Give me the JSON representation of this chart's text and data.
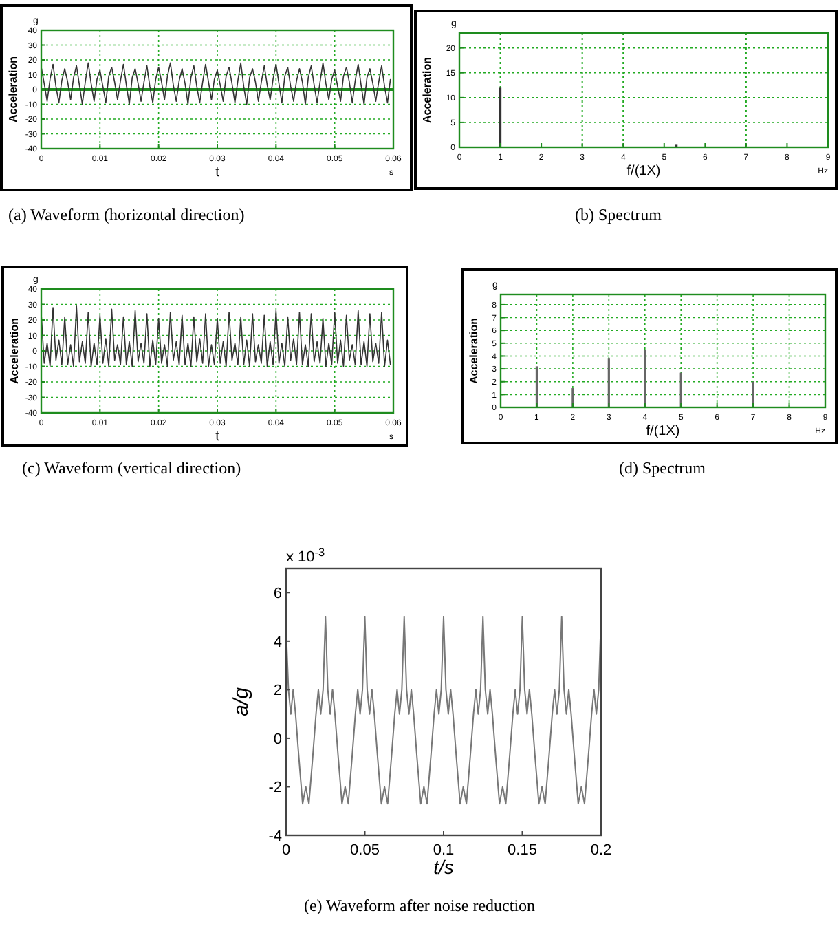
{
  "chart_data": [
    {
      "type": "line",
      "title": "(a) Waveform (horizontal direction)",
      "xlabel": "t",
      "ylabel": "Acceleration",
      "annotations": [
        "g",
        "s"
      ],
      "xlim": [
        0,
        0.06
      ],
      "xticks": [
        0,
        0.01,
        0.02,
        0.03,
        0.04,
        0.05,
        0.06
      ],
      "ylim": [
        -40,
        40
      ],
      "yticks": [
        -40,
        -30,
        -20,
        -10,
        0,
        10,
        20,
        30,
        40
      ],
      "grid": true,
      "ref_lines": [
        {
          "axis": "y",
          "value": 0,
          "color": "#1e8c1e"
        }
      ],
      "x": [
        0,
        0.0005,
        0.001,
        0.0015,
        0.002,
        0.0025,
        0.003,
        0.0035,
        0.004,
        0.0045,
        0.005,
        0.0055,
        0.006,
        0.0065,
        0.007,
        0.0075,
        0.008,
        0.0085,
        0.009,
        0.0095,
        0.01,
        0.0105,
        0.011,
        0.0115,
        0.012,
        0.0125,
        0.013,
        0.0135,
        0.014,
        0.0145,
        0.015,
        0.0155,
        0.016,
        0.0165,
        0.017,
        0.0175,
        0.018,
        0.0185,
        0.019,
        0.0195,
        0.02,
        0.0205,
        0.021,
        0.0215,
        0.022,
        0.0225,
        0.023,
        0.0235,
        0.024,
        0.0245,
        0.025,
        0.0255,
        0.026,
        0.0265,
        0.027,
        0.0275,
        0.028,
        0.0285,
        0.029,
        0.0295,
        0.03,
        0.0305,
        0.031,
        0.0315,
        0.032,
        0.0325,
        0.033,
        0.0335,
        0.034,
        0.0345,
        0.035,
        0.0355,
        0.036,
        0.0365,
        0.037,
        0.0375,
        0.038,
        0.0385,
        0.039,
        0.0395,
        0.04,
        0.0405,
        0.041,
        0.0415,
        0.042,
        0.0425,
        0.043,
        0.0435,
        0.044,
        0.0445,
        0.045,
        0.0455,
        0.046,
        0.0465,
        0.047,
        0.0475,
        0.048,
        0.0485,
        0.049,
        0.0495,
        0.05,
        0.0505,
        0.051,
        0.0515,
        0.052,
        0.0525,
        0.053,
        0.0535,
        0.054,
        0.0545,
        0.055,
        0.0555,
        0.056,
        0.0565,
        0.057,
        0.0575,
        0.058,
        0.0585,
        0.059,
        0.0595
      ],
      "series": [
        {
          "color": "#333333",
          "values": [
            15,
            4,
            -8,
            7,
            17,
            2,
            -9,
            6,
            14,
            5,
            -7,
            8,
            16,
            3,
            -10,
            5,
            18,
            4,
            -8,
            7,
            13,
            2,
            -9,
            9,
            15,
            5,
            -7,
            6,
            17,
            3,
            -10,
            8,
            14,
            4,
            -8,
            5,
            16,
            2,
            -9,
            7,
            15,
            5,
            -7,
            9,
            18,
            3,
            -8,
            6,
            14,
            4,
            -10,
            8,
            16,
            2,
            -9,
            5,
            17,
            5,
            -7,
            7,
            13,
            3,
            -8,
            9,
            15,
            4,
            -9,
            6,
            18,
            2,
            -10,
            8,
            14,
            5,
            -8,
            5,
            16,
            3,
            -7,
            7,
            17,
            4,
            -9,
            9,
            15,
            2,
            -8,
            6,
            14,
            5,
            -10,
            8,
            16,
            3,
            -9,
            5,
            18,
            4,
            -7,
            7,
            13,
            2,
            -8,
            9,
            15,
            5,
            -9,
            6,
            17,
            3,
            -10,
            8,
            14,
            4,
            -8,
            5,
            16,
            2,
            -9,
            7
          ]
        }
      ]
    },
    {
      "type": "bar",
      "title": "(b) Spectrum",
      "xlabel": "f/(1X)",
      "ylabel": "Acceleration",
      "annotations": [
        "g",
        "Hz"
      ],
      "xlim": [
        0,
        9
      ],
      "xticks": [
        0,
        1,
        2,
        3,
        4,
        5,
        6,
        7,
        8,
        9
      ],
      "ylim": [
        0,
        23
      ],
      "yticks": [
        0,
        5,
        10,
        15,
        20
      ],
      "grid": "y",
      "ref_lines": [
        {
          "axis": "x",
          "value": 1,
          "color": "#22aa22",
          "line_style": "dotted"
        },
        {
          "axis": "x",
          "value": 3,
          "color": "#22aa22",
          "line_style": "dotted"
        },
        {
          "axis": "x",
          "value": 4,
          "color": "#22aa22",
          "line_style": "dotted"
        },
        {
          "axis": "x",
          "value": 7,
          "color": "#22aa22",
          "line_style": "dotted"
        }
      ],
      "x": [
        1,
        5.3
      ],
      "series": [
        {
          "color": "#333333",
          "values": [
            12,
            0.5
          ]
        }
      ]
    },
    {
      "type": "line",
      "title": "(c) Waveform (vertical direction)",
      "xlabel": "t",
      "ylabel": "Acceleration",
      "annotations": [
        "g",
        "s"
      ],
      "xlim": [
        0,
        0.06
      ],
      "xticks": [
        0,
        0.01,
        0.02,
        0.03,
        0.04,
        0.05,
        0.06
      ],
      "ylim": [
        -40,
        40
      ],
      "yticks": [
        -40,
        -30,
        -20,
        -10,
        0,
        10,
        20,
        30,
        40
      ],
      "grid": true,
      "x": [
        0,
        0.0005,
        0.001,
        0.0015,
        0.002,
        0.0025,
        0.003,
        0.0035,
        0.004,
        0.0045,
        0.005,
        0.0055,
        0.006,
        0.0065,
        0.007,
        0.0075,
        0.008,
        0.0085,
        0.009,
        0.0095,
        0.01,
        0.0105,
        0.011,
        0.0115,
        0.012,
        0.0125,
        0.013,
        0.0135,
        0.014,
        0.0145,
        0.015,
        0.0155,
        0.016,
        0.0165,
        0.017,
        0.0175,
        0.018,
        0.0185,
        0.019,
        0.0195,
        0.02,
        0.0205,
        0.021,
        0.0215,
        0.022,
        0.0225,
        0.023,
        0.0235,
        0.024,
        0.0245,
        0.025,
        0.0255,
        0.026,
        0.0265,
        0.027,
        0.0275,
        0.028,
        0.0285,
        0.029,
        0.0295,
        0.03,
        0.0305,
        0.031,
        0.0315,
        0.032,
        0.0325,
        0.033,
        0.0335,
        0.034,
        0.0345,
        0.035,
        0.0355,
        0.036,
        0.0365,
        0.037,
        0.0375,
        0.038,
        0.0385,
        0.039,
        0.0395,
        0.04,
        0.0405,
        0.041,
        0.0415,
        0.042,
        0.0425,
        0.043,
        0.0435,
        0.044,
        0.0445,
        0.045,
        0.0455,
        0.046,
        0.0465,
        0.047,
        0.0475,
        0.048,
        0.0485,
        0.049,
        0.0495,
        0.05,
        0.0505,
        0.051,
        0.0515,
        0.052,
        0.0525,
        0.053,
        0.0535,
        0.054,
        0.0545,
        0.055,
        0.0555,
        0.056,
        0.0565,
        0.057,
        0.0575,
        0.058,
        0.0585,
        0.059,
        0.0595
      ],
      "series": [
        {
          "color": "#333333",
          "values": [
            24,
            -8,
            5,
            -10,
            28,
            -6,
            7,
            -9,
            22,
            -9,
            4,
            -10,
            29,
            -7,
            6,
            -8,
            25,
            -10,
            5,
            -9,
            23,
            -8,
            8,
            -10,
            27,
            -6,
            4,
            -9,
            22,
            -9,
            6,
            -10,
            26,
            -7,
            5,
            -8,
            24,
            -10,
            7,
            -9,
            21,
            -8,
            4,
            -10,
            25,
            -6,
            6,
            -9,
            23,
            -9,
            5,
            -10,
            22,
            -7,
            8,
            -8,
            24,
            -10,
            4,
            -9,
            21,
            -8,
            6,
            -10,
            25,
            -6,
            5,
            -9,
            22,
            -9,
            7,
            -10,
            24,
            -7,
            4,
            -8,
            23,
            -10,
            6,
            -9,
            26,
            -8,
            5,
            -10,
            22,
            -6,
            8,
            -9,
            25,
            -9,
            4,
            -10,
            24,
            -7,
            6,
            -8,
            21,
            -10,
            5,
            -9,
            25,
            -8,
            7,
            -10,
            23,
            -6,
            4,
            -9,
            26,
            -9,
            6,
            -10,
            24,
            -7,
            5,
            -8,
            25,
            -10,
            7,
            -9
          ]
        }
      ]
    },
    {
      "type": "bar",
      "title": "(d) Spectrum",
      "xlabel": "f/(1X)",
      "ylabel": "Acceleration",
      "annotations": [
        "g",
        "Hz"
      ],
      "xlim": [
        0,
        9
      ],
      "xticks": [
        0,
        1,
        2,
        3,
        4,
        5,
        6,
        7,
        8,
        9
      ],
      "ylim": [
        0,
        8.8
      ],
      "yticks": [
        0,
        1,
        2,
        3,
        4,
        5,
        6,
        7,
        8
      ],
      "grid": true,
      "x": [
        1,
        2,
        3,
        4,
        5,
        7
      ],
      "series": [
        {
          "color": "#666666",
          "values": [
            3.2,
            1.5,
            3.8,
            4.5,
            2.7,
            2.0
          ]
        }
      ]
    },
    {
      "type": "line",
      "title": "(e) Waveform after noise reduction",
      "xlabel": "t/s",
      "ylabel": "a/g",
      "annotations": [
        "x 10$^{-3}$"
      ],
      "xlim": [
        0,
        0.2
      ],
      "xticks": [
        0,
        0.05,
        0.1,
        0.15,
        0.2
      ],
      "ylim": [
        -4,
        7
      ],
      "yticks": [
        -4,
        -2,
        0,
        2,
        4,
        6
      ],
      "x": [
        0,
        0.0015,
        0.003,
        0.0045,
        0.006,
        0.008,
        0.0105,
        0.0125,
        0.0145,
        0.017,
        0.019,
        0.0205,
        0.022,
        0.0235,
        0.025,
        0.0265,
        0.028,
        0.0295,
        0.031,
        0.033,
        0.0355,
        0.0375,
        0.0395,
        0.042,
        0.044,
        0.0455,
        0.047,
        0.0485,
        0.05,
        0.0515,
        0.053,
        0.0545,
        0.056,
        0.058,
        0.0605,
        0.0625,
        0.0645,
        0.067,
        0.069,
        0.0705,
        0.072,
        0.0735,
        0.075,
        0.0765,
        0.078,
        0.0795,
        0.081,
        0.083,
        0.0855,
        0.0875,
        0.0895,
        0.092,
        0.094,
        0.0955,
        0.097,
        0.0985,
        0.1,
        0.1015,
        0.103,
        0.1045,
        0.106,
        0.108,
        0.1105,
        0.1125,
        0.1145,
        0.117,
        0.119,
        0.1205,
        0.122,
        0.1235,
        0.125,
        0.1265,
        0.128,
        0.1295,
        0.131,
        0.133,
        0.1355,
        0.1375,
        0.1395,
        0.142,
        0.144,
        0.1455,
        0.147,
        0.1485,
        0.15,
        0.1515,
        0.153,
        0.1545,
        0.156,
        0.158,
        0.1605,
        0.1625,
        0.1645,
        0.167,
        0.169,
        0.1705,
        0.172,
        0.1735,
        0.175,
        0.1765,
        0.178,
        0.1795,
        0.181,
        0.183,
        0.1855,
        0.1875,
        0.1895,
        0.192,
        0.194,
        0.1955,
        0.197,
        0.1985,
        0.2
      ],
      "series": [
        {
          "color": "#777777",
          "values": [
            4.5,
            2,
            1,
            2,
            1,
            -0.7,
            -2.7,
            -2,
            -2.7,
            -0.7,
            1,
            2,
            1,
            2,
            5,
            2,
            1,
            2,
            1,
            -0.7,
            -2.7,
            -2,
            -2.7,
            -0.7,
            1,
            2,
            1,
            2,
            5,
            2,
            1,
            2,
            1,
            -0.7,
            -2.7,
            -2,
            -2.7,
            -0.7,
            1,
            2,
            1,
            2,
            5,
            2,
            1,
            2,
            1,
            -0.7,
            -2.7,
            -2,
            -2.7,
            -0.7,
            1,
            2,
            1,
            2,
            5,
            2,
            1,
            2,
            1,
            -0.7,
            -2.7,
            -2,
            -2.7,
            -0.7,
            1,
            2,
            1,
            2,
            5,
            2,
            1,
            2,
            1,
            -0.7,
            -2.7,
            -2,
            -2.7,
            -0.7,
            1,
            2,
            1,
            2,
            5,
            2,
            1,
            2,
            1,
            -0.7,
            -2.7,
            -2,
            -2.7,
            -0.7,
            1,
            2,
            1,
            2,
            5,
            2,
            1,
            2,
            1,
            -0.7,
            -2.7,
            -2,
            -2.7,
            -0.7,
            1,
            2,
            1,
            2,
            5
          ]
        }
      ]
    }
  ]
}
